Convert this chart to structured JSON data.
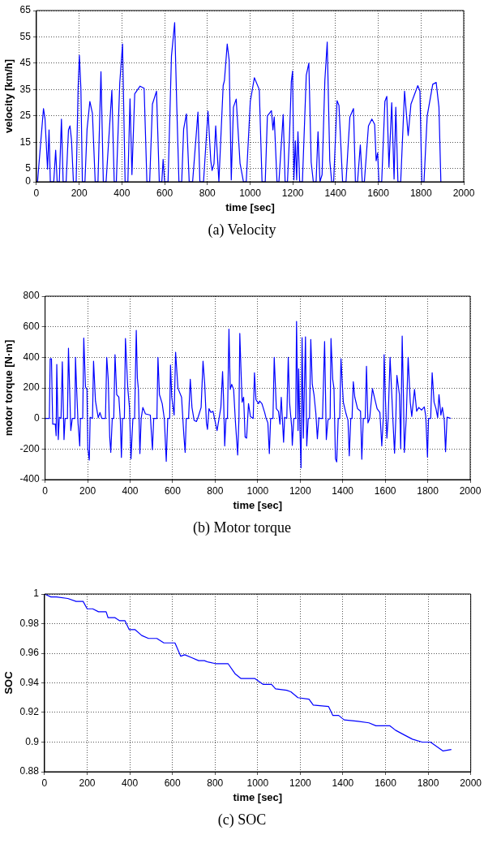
{
  "chart_data": [
    {
      "type": "line",
      "xlabel": "time [sec]",
      "ylabel": "velocity [km/h]",
      "annotations": [
        "(a) Velocity"
      ],
      "color": "#0000ff",
      "marker": "none",
      "line_style": "solid",
      "grid": true,
      "legend": false,
      "xlim": [
        0,
        2000
      ],
      "xticks": [
        0,
        200,
        400,
        600,
        800,
        1000,
        1200,
        1400,
        1600,
        1800,
        2000
      ],
      "ylim": [
        0,
        65
      ],
      "yticks": [
        0,
        5,
        15,
        25,
        35,
        45,
        55,
        65
      ],
      "x": [
        5,
        33,
        40,
        52,
        59,
        65,
        81,
        90,
        97,
        107,
        117,
        125,
        139,
        150,
        157,
        164,
        173,
        186,
        195,
        201,
        208,
        215,
        227,
        237,
        250,
        262,
        275,
        288,
        302,
        313,
        326,
        353,
        364,
        374,
        390,
        403,
        415,
        428,
        438,
        447,
        460,
        485,
        504,
        517,
        530,
        543,
        562,
        575,
        587,
        593,
        600,
        616,
        632,
        647,
        657,
        667,
        680,
        689,
        702,
        715,
        731,
        756,
        765,
        782,
        803,
        816,
        822,
        831,
        839,
        854,
        874,
        880,
        893,
        902,
        912,
        922,
        935,
        953,
        969,
        982,
        1001,
        1020,
        1043,
        1056,
        1071,
        1081,
        1100,
        1107,
        1113,
        1126,
        1135,
        1155,
        1164,
        1175,
        1184,
        1193,
        1199,
        1205,
        1212,
        1218,
        1224,
        1232,
        1245,
        1263,
        1275,
        1286,
        1296,
        1309,
        1318,
        1327,
        1337,
        1350,
        1361,
        1373,
        1382,
        1391,
        1407,
        1416,
        1433,
        1449,
        1467,
        1484,
        1493,
        1503,
        1516,
        1525,
        1535,
        1554,
        1570,
        1583,
        1590,
        1597,
        1603,
        1616,
        1631,
        1640,
        1650,
        1663,
        1674,
        1682,
        1692,
        1705,
        1723,
        1740,
        1753,
        1785,
        1795,
        1804,
        1814,
        1829,
        1855,
        1871,
        1884,
        1893
      ],
      "values": [
        0,
        27.8,
        24,
        4.8,
        19.7,
        0,
        0,
        12,
        0,
        0,
        23.8,
        0,
        0,
        19.7,
        21.2,
        16,
        0,
        0,
        35.5,
        48,
        35.5,
        0,
        0,
        20,
        30.5,
        26,
        0,
        0,
        41.8,
        0,
        0,
        34.7,
        0,
        0,
        37.5,
        52.3,
        0,
        0,
        31.5,
        2.7,
        33.4,
        36.3,
        35.5,
        0,
        0,
        29.5,
        34.4,
        0,
        0,
        8.5,
        0,
        0,
        47.7,
        60.4,
        28.3,
        0,
        0,
        20,
        25.8,
        0,
        0,
        26.5,
        0,
        0,
        26.8,
        8,
        4.3,
        6.8,
        21.2,
        0,
        36.5,
        38.5,
        52.3,
        46.2,
        0.7,
        28.3,
        31.4,
        7,
        0,
        0,
        30.5,
        39.5,
        35,
        0,
        0,
        25,
        27,
        19.7,
        24.6,
        0,
        0,
        25.5,
        0,
        0,
        16.4,
        38,
        42,
        0.7,
        15.5,
        0.7,
        19,
        0,
        0,
        40.5,
        45,
        7.4,
        0,
        0,
        19,
        0,
        2.7,
        38.5,
        53,
        8,
        0,
        0,
        30.8,
        29,
        0,
        0,
        24.6,
        27.8,
        0,
        0,
        14,
        0,
        0,
        21.2,
        23.8,
        21.8,
        8,
        11,
        0,
        0,
        30.5,
        32.4,
        5.5,
        30,
        1,
        28.3,
        0,
        0,
        34.4,
        17.6,
        29.5,
        36.5,
        34.4,
        0,
        0,
        25,
        37,
        37.7,
        28.3,
        0
      ]
    },
    {
      "type": "line",
      "xlabel": "time [sec]",
      "ylabel": "motor torque [N·m]",
      "annotations": [
        "(b) Motor torque"
      ],
      "color": "#0000ff",
      "marker": "none",
      "line_style": "solid",
      "grid": true,
      "legend": false,
      "xlim": [
        0,
        2000
      ],
      "xticks": [
        0,
        200,
        400,
        600,
        800,
        1000,
        1200,
        1400,
        1600,
        1800,
        2000
      ],
      "ylim": [
        -400,
        800
      ],
      "yticks": [
        -400,
        -200,
        0,
        200,
        400,
        600,
        800
      ],
      "x": [
        0,
        20,
        24,
        30,
        33,
        36,
        39,
        48,
        52,
        55,
        62,
        67,
        75,
        81,
        89,
        94,
        105,
        110,
        121,
        128,
        140,
        143,
        148,
        155,
        163,
        166,
        177,
        182,
        190,
        197,
        201,
        208,
        212,
        223,
        228,
        237,
        250,
        258,
        267,
        284,
        290,
        297,
        304,
        309,
        316,
        323,
        329,
        337,
        347,
        354,
        359,
        364,
        373,
        378,
        389,
        397,
        404,
        413,
        421,
        429,
        434,
        439,
        446,
        452,
        460,
        472,
        495,
        505,
        511,
        526,
        531,
        538,
        551,
        561,
        570,
        577,
        586,
        590,
        596,
        607,
        614,
        625,
        642,
        653,
        659,
        664,
        675,
        683,
        691,
        701,
        712,
        721,
        734,
        743,
        751,
        759,
        764,
        771,
        780,
        790,
        797,
        809,
        819,
        827,
        835,
        840,
        845,
        851,
        858,
        865,
        871,
        878,
        887,
        895,
        906,
        912,
        916,
        921,
        927,
        934,
        941,
        948,
        957,
        966,
        979,
        985,
        992,
        1000,
        1004,
        1009,
        1020,
        1033,
        1039,
        1048,
        1055,
        1061,
        1072,
        1078,
        1088,
        1098,
        1105,
        1111,
        1122,
        1127,
        1137,
        1144,
        1150,
        1160,
        1163,
        1170,
        1179,
        1183,
        1190,
        1193,
        1199,
        1204,
        1209,
        1215,
        1225,
        1231,
        1238,
        1244,
        1250,
        1257,
        1265,
        1274,
        1281,
        1288,
        1294,
        1305,
        1315,
        1323,
        1331,
        1341,
        1345,
        1353,
        1359,
        1366,
        1372,
        1379,
        1386,
        1392,
        1403,
        1416,
        1425,
        1431,
        1438,
        1444,
        1450,
        1457,
        1470,
        1484,
        1490,
        1497,
        1506,
        1512,
        1519,
        1527,
        1540,
        1549,
        1562,
        1575,
        1584,
        1591,
        1595,
        1601,
        1608,
        1614,
        1623,
        1631,
        1636,
        1644,
        1650,
        1655,
        1667,
        1673,
        1680,
        1686,
        1690,
        1699,
        1708,
        1718,
        1725,
        1738,
        1748,
        1758,
        1771,
        1784,
        1791,
        1799,
        1804,
        1814,
        1821,
        1830,
        1839,
        1847,
        1853,
        1862,
        1869,
        1878,
        1884,
        1891,
        1908
      ],
      "values": [
        0,
        0,
        391,
        391,
        156,
        -37,
        -37,
        -37,
        -113,
        354,
        -138,
        8,
        0,
        371,
        -138,
        0,
        0,
        459,
        -79,
        0,
        0,
        400,
        207,
        -29,
        -180,
        0,
        0,
        526,
        207,
        190,
        -197,
        -272,
        8,
        0,
        375,
        114,
        5,
        39,
        0,
        0,
        400,
        257,
        -121,
        -222,
        0,
        0,
        417,
        156,
        139,
        -12,
        -255,
        0,
        0,
        523,
        198,
        72,
        -264,
        0,
        0,
        576,
        265,
        190,
        -230,
        0,
        72,
        30,
        22,
        -205,
        0,
        0,
        400,
        156,
        97,
        -3,
        -281,
        0,
        0,
        349,
        139,
        22,
        433,
        198,
        139,
        -113,
        -222,
        0,
        0,
        257,
        72,
        -12,
        -20,
        13,
        72,
        375,
        223,
        -29,
        -71,
        64,
        39,
        47,
        0,
        -79,
        5,
        72,
        307,
        114,
        -180,
        0,
        0,
        585,
        190,
        223,
        190,
        -12,
        -239,
        0,
        556,
        341,
        106,
        139,
        -121,
        -129,
        97,
        13,
        0,
        299,
        123,
        106,
        97,
        114,
        97,
        39,
        5,
        -29,
        -230,
        0,
        0,
        400,
        64,
        47,
        -37,
        139,
        -155,
        8,
        0,
        400,
        106,
        -54,
        -176,
        0,
        0,
        635,
        -79,
        324,
        -79,
        -323,
        529,
        -129,
        534,
        -180,
        0,
        0,
        517,
        223,
        156,
        30,
        -133,
        5,
        0,
        0,
        504,
        -138,
        -8,
        0,
        523,
        257,
        198,
        -264,
        -284,
        0,
        0,
        391,
        106,
        30,
        -12,
        -244,
        0,
        0,
        240,
        139,
        64,
        47,
        -267,
        0,
        0,
        341,
        -29,
        0,
        195,
        139,
        64,
        39,
        -180,
        0,
        417,
        131,
        -129,
        0,
        400,
        156,
        0,
        -227,
        0,
        282,
        156,
        -197,
        539,
        139,
        -222,
        0,
        400,
        106,
        13,
        190,
        47,
        72,
        55,
        76,
        13,
        -252,
        0,
        0,
        299,
        106,
        64,
        5,
        156,
        22,
        72,
        -12,
        -218,
        8,
        0
      ]
    },
    {
      "type": "line",
      "xlabel": "time [sec]",
      "ylabel": "SOC",
      "annotations": [
        "(c) SOC"
      ],
      "color": "#0000ff",
      "marker": "none",
      "line_style": "solid",
      "grid": true,
      "legend": false,
      "xlim": [
        0,
        2000
      ],
      "xticks": [
        0,
        200,
        400,
        600,
        800,
        1000,
        1200,
        1400,
        1600,
        1800,
        2000
      ],
      "ylim": [
        0.88,
        1
      ],
      "yticks": [
        0.88,
        0.9,
        0.92,
        0.94,
        0.96,
        0.98,
        1
      ],
      "x": [
        0,
        30,
        56,
        109,
        148,
        181,
        200,
        226,
        253,
        289,
        298,
        331,
        351,
        377,
        397,
        424,
        456,
        488,
        527,
        560,
        612,
        639,
        658,
        691,
        723,
        750,
        769,
        802,
        861,
        895,
        921,
        986,
        1025,
        1065,
        1084,
        1136,
        1156,
        1189,
        1241,
        1261,
        1333,
        1353,
        1380,
        1406,
        1471,
        1522,
        1555,
        1621,
        1647,
        1686,
        1726,
        1772,
        1811,
        1850,
        1870,
        1909
      ],
      "values": [
        1,
        0.998,
        0.998,
        0.997,
        0.995,
        0.995,
        0.99,
        0.99,
        0.988,
        0.988,
        0.984,
        0.984,
        0.982,
        0.982,
        0.976,
        0.976,
        0.972,
        0.97,
        0.97,
        0.967,
        0.967,
        0.958,
        0.959,
        0.957,
        0.955,
        0.955,
        0.954,
        0.953,
        0.953,
        0.946,
        0.943,
        0.943,
        0.939,
        0.939,
        0.936,
        0.935,
        0.934,
        0.93,
        0.929,
        0.925,
        0.924,
        0.918,
        0.918,
        0.915,
        0.914,
        0.913,
        0.911,
        0.911,
        0.908,
        0.905,
        0.902,
        0.9,
        0.9,
        0.896,
        0.894,
        0.895
      ]
    }
  ]
}
